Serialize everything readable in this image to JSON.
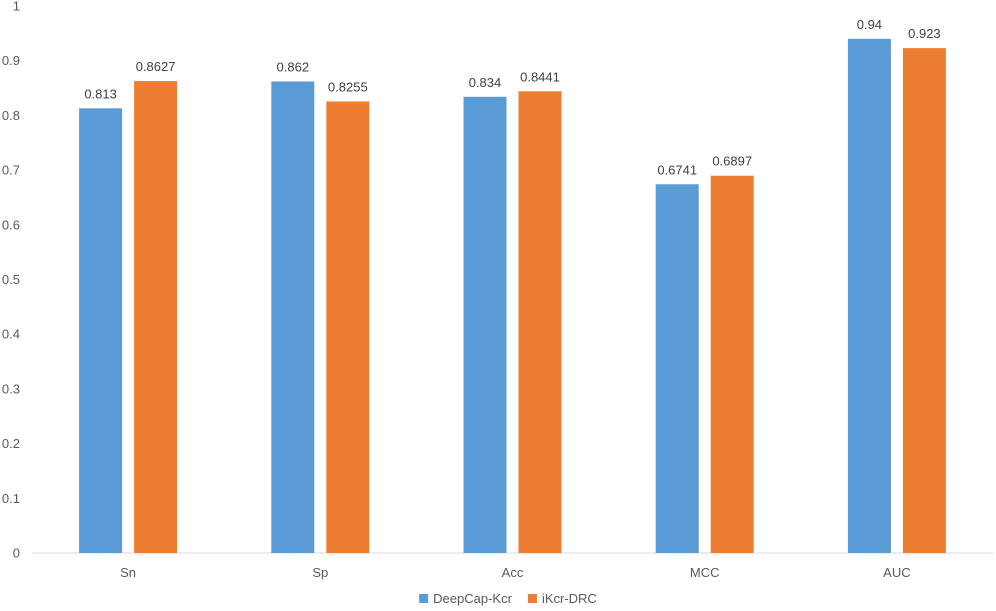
{
  "chart_data": {
    "type": "bar",
    "categories": [
      "Sn",
      "Sp",
      "Acc",
      "MCC",
      "AUC"
    ],
    "series": [
      {
        "name": "DeepCap-Kcr",
        "values": [
          0.813,
          0.862,
          0.834,
          0.6741,
          0.94
        ],
        "labels": [
          "0.813",
          "0.862",
          "0.834",
          "0.6741",
          "0.94"
        ],
        "color": "#5B9BD5"
      },
      {
        "name": "iKcr-DRC",
        "values": [
          0.8627,
          0.8255,
          0.8441,
          0.6897,
          0.923
        ],
        "labels": [
          "0.8627",
          "0.8255",
          "0.8441",
          "0.6897",
          "0.923"
        ],
        "color": "#ED7D31"
      }
    ],
    "y_ticks": [
      "0",
      "0.1",
      "0.2",
      "0.3",
      "0.4",
      "0.5",
      "0.6",
      "0.7",
      "0.8",
      "0.9",
      "1"
    ],
    "ylim": [
      0,
      1
    ],
    "grid": false,
    "legend_position": "bottom-center",
    "title": "",
    "xlabel": "",
    "ylabel": ""
  }
}
